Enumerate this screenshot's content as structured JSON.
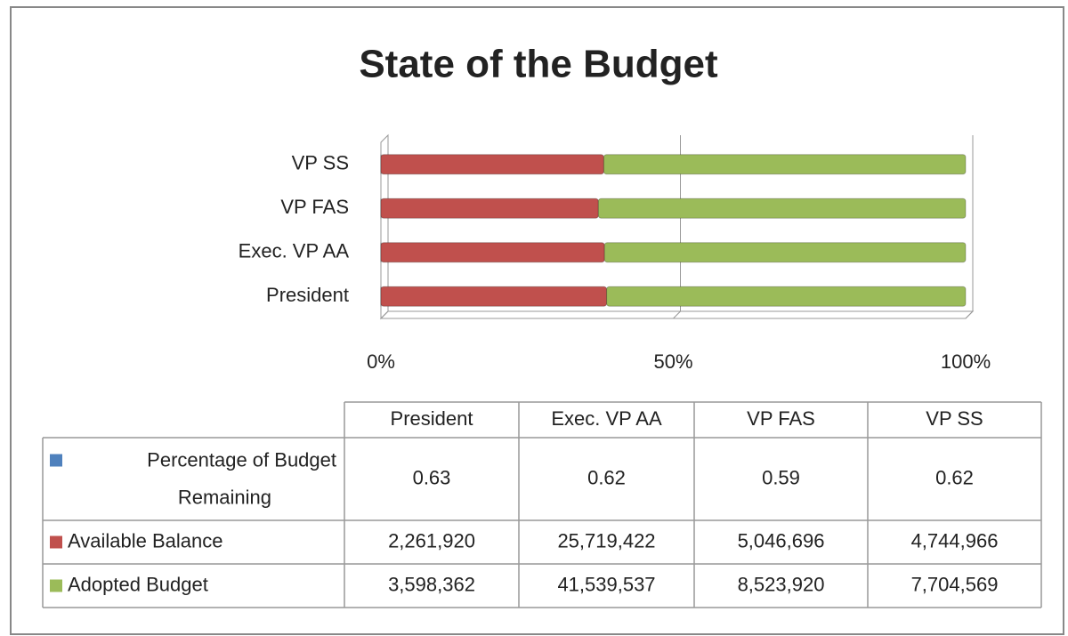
{
  "chart_data": {
    "type": "bar",
    "orientation": "horizontal",
    "stacking": "percent",
    "title": "State of the Budget",
    "categories": [
      "President",
      "Exec. VP AA",
      "VP FAS",
      "VP SS"
    ],
    "series": [
      {
        "name": "Percentage of Budget Remaining",
        "color": "#4f81bd",
        "values": [
          0.63,
          0.62,
          0.59,
          0.62
        ]
      },
      {
        "name": "Available Balance",
        "color": "#c0504d",
        "values": [
          2261920,
          25719422,
          5046696,
          4744966
        ],
        "value_labels": [
          "2,261,920",
          "25,719,422",
          "5,046,696",
          "4,744,966"
        ]
      },
      {
        "name": "Adopted Budget",
        "color": "#9bbb59",
        "values": [
          3598362,
          41539537,
          8523920,
          7704569
        ],
        "value_labels": [
          "3,598,362",
          "41,539,537",
          "8,523,920",
          "7,704,569"
        ]
      }
    ],
    "xlim": [
      0,
      100
    ],
    "xticks": [
      {
        "value": 0,
        "label": "0%"
      },
      {
        "value": 50,
        "label": "50%"
      },
      {
        "value": 100,
        "label": "100%"
      }
    ],
    "grid": true,
    "data_table": true
  }
}
